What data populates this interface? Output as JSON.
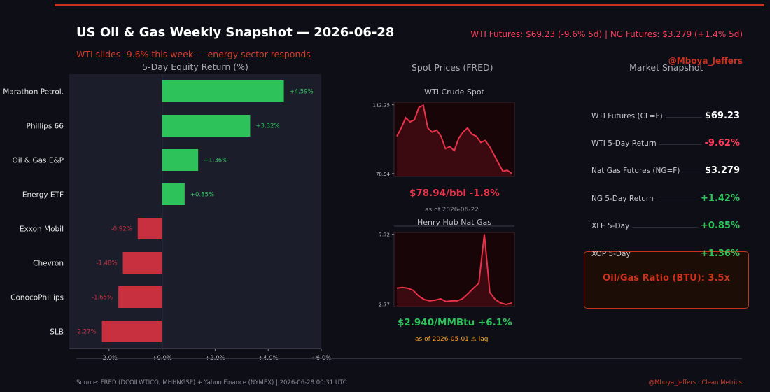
{
  "header": {
    "title": "US Oil & Gas Weekly Snapshot — 2026-06-28",
    "subtitle": "WTI slides -9.6% this week — energy sector responds",
    "ticker": "WTI Futures: $69.23  (-9.6% 5d)  |  NG Futures: $3.279  (+1.4% 5d)",
    "handle": "@Mboya_Jeffers"
  },
  "colors": {
    "positive": "#2ec25a",
    "negative": "#c8303f",
    "accent": "#c8321e",
    "panel_bg": "#1b1d2b",
    "spot_red": "#e8324a"
  },
  "chart_data": [
    {
      "type": "bar",
      "orientation": "horizontal",
      "title": "5-Day Equity Return (%)",
      "categories": [
        "Marathon Petrol.",
        "Phillips 66",
        "Oil & Gas E&P",
        "Energy ETF",
        "Exxon Mobil",
        "Chevron",
        "ConocoPhillips",
        "SLB"
      ],
      "values": [
        4.59,
        3.32,
        1.36,
        0.85,
        -0.92,
        -1.48,
        -1.65,
        -2.27
      ],
      "data_labels": [
        "+4.59%",
        "+3.32%",
        "+1.36%",
        "+0.85%",
        "-0.92%",
        "-1.48%",
        "-1.65%",
        "-2.27%"
      ],
      "xlim": [
        -3.5,
        6.0
      ],
      "xticks": [
        -2,
        0,
        2,
        4,
        6
      ],
      "xtick_labels": [
        "-2.0%",
        "+0.0%",
        "+2.0%",
        "+4.0%",
        "+6.0%"
      ]
    },
    {
      "type": "line",
      "title": "WTI Crude Spot",
      "yticks": [
        78.94,
        112.25
      ],
      "ytick_labels": [
        "78.94",
        "112.25"
      ],
      "ylim": [
        77.5,
        113.5
      ],
      "values": [
        97,
        101,
        106,
        104,
        105,
        111,
        112,
        101,
        99,
        100,
        97,
        91,
        92,
        90,
        96,
        99,
        101,
        98,
        97,
        94,
        95,
        92,
        88,
        84,
        80,
        80.5,
        79
      ]
    },
    {
      "type": "area",
      "title": "Henry Hub Nat Gas",
      "yticks": [
        2.77,
        7.72
      ],
      "ytick_labels": [
        "2.77",
        "7.72"
      ],
      "ylim": [
        2.6,
        7.85
      ],
      "values": [
        3.9,
        3.95,
        3.9,
        3.75,
        3.35,
        3.1,
        3.0,
        3.05,
        3.15,
        2.95,
        3.0,
        3.0,
        3.15,
        3.5,
        3.9,
        4.25,
        7.72,
        3.6,
        3.1,
        2.85,
        2.75,
        2.85
      ]
    }
  ],
  "spot": {
    "section_title": "Spot Prices (FRED)",
    "wti_value": "$78.94/bbl  -1.8%",
    "wti_asof": "as of 2026-06-22",
    "ng_value": "$2.940/MMBtu  +6.1%",
    "ng_asof": "as of 2026-05-01 ⚠ lag"
  },
  "snapshot": {
    "section_title": "Market Snapshot",
    "rows": [
      {
        "label": "WTI Futures (CL=F)",
        "value": "$69.23",
        "color": "#ffffff"
      },
      {
        "label": "WTI 5-Day Return",
        "value": "-9.62%",
        "color": "#ff3b5c"
      },
      {
        "label": "Nat Gas Futures (NG=F)",
        "value": "$3.279",
        "color": "#ffffff"
      },
      {
        "label": "NG 5-Day Return",
        "value": "+1.42%",
        "color": "#2ec25a"
      },
      {
        "label": "XLE 5-Day",
        "value": "+0.85%",
        "color": "#2ec25a"
      },
      {
        "label": "XOP 5-Day",
        "value": "+1.36%",
        "color": "#2ec25a"
      }
    ],
    "ratio": "Oil/Gas Ratio (BTU): 3.5x"
  },
  "footer": {
    "source": "Source: FRED (DCOILWTICO, MHHNGSP) + Yahoo Finance (NYMEX)  |  2026-06-28 00:31 UTC",
    "credit": "@Mboya_Jeffers  ·  Clean Metrics"
  }
}
